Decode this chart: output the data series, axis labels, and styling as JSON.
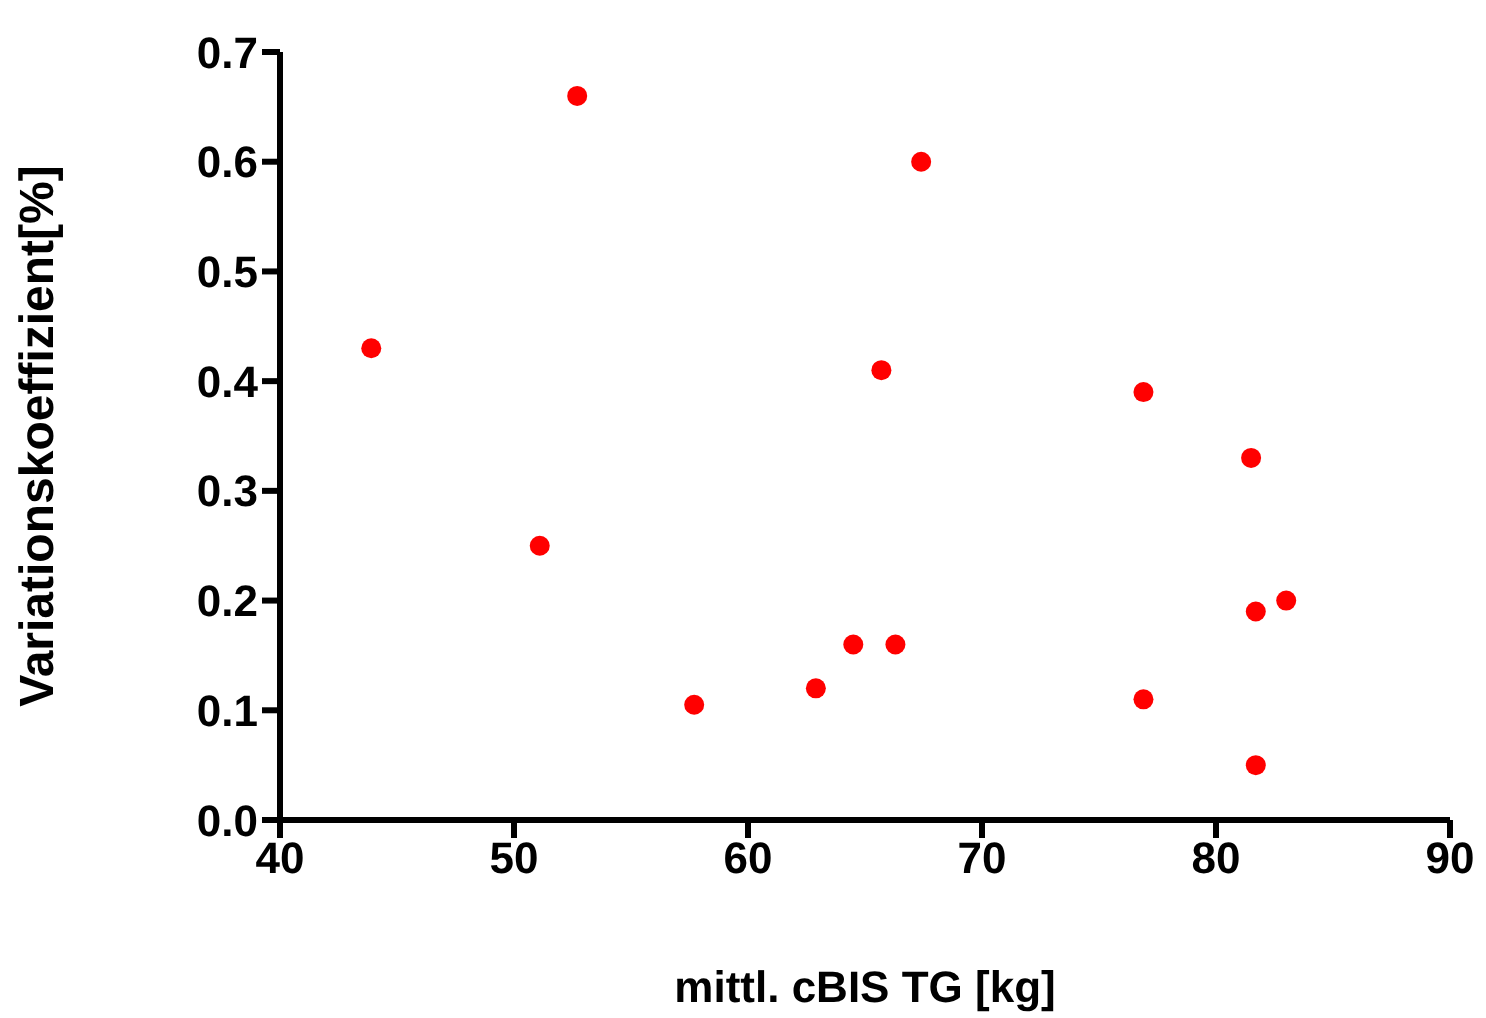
{
  "chart_data": {
    "type": "scatter",
    "xlabel": "mittl. cBIS TG [kg]",
    "ylabel": "Variationskoeffizient[%]",
    "x": [
      43.9,
      51.1,
      52.7,
      57.7,
      62.9,
      64.5,
      65.7,
      66.3,
      67.4,
      76.9,
      76.9,
      81.5,
      81.7,
      81.7,
      83.0
    ],
    "series": [
      {
        "color": "#ff0000",
        "values": [
          0.43,
          0.25,
          0.66,
          0.105,
          0.12,
          0.16,
          0.41,
          0.16,
          0.6,
          0.39,
          0.11,
          0.33,
          0.19,
          0.05,
          0.2
        ]
      }
    ],
    "xlim": [
      40,
      90
    ],
    "xticks": [
      40,
      50,
      60,
      70,
      80,
      90
    ],
    "ylim": [
      0,
      0.7
    ],
    "yticks": [
      {
        "value": 0,
        "label": "0.0"
      },
      0.1,
      0.2,
      0.3,
      0.4,
      0.5,
      0.6,
      0.7
    ],
    "grid": false,
    "legend": false,
    "marker": "circle"
  }
}
